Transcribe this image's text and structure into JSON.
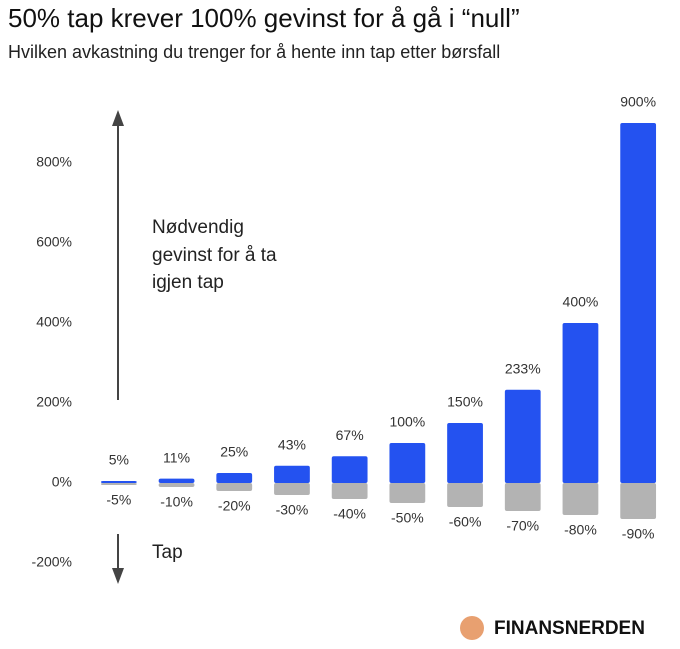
{
  "chart_data": {
    "type": "bar",
    "title": "50% tap krever 100% gevinst for å gå i “null”",
    "subtitle": "Hvilken avkastning du trenger for å hente inn tap etter børsfall",
    "series": [
      {
        "name": "Gevinst",
        "color": "#2452f0",
        "values": [
          5,
          11,
          25,
          43,
          67,
          100,
          150,
          233,
          400,
          900
        ],
        "value_labels": [
          "5%",
          "11%",
          "25%",
          "43%",
          "67%",
          "100%",
          "150%",
          "233%",
          "400%",
          "900%"
        ]
      },
      {
        "name": "Tap",
        "color": "#b3b3b3",
        "values": [
          -5,
          -10,
          -20,
          -30,
          -40,
          -50,
          -60,
          -70,
          -80,
          -90
        ],
        "value_labels": [
          "-5%",
          "-10%",
          "-20%",
          "-30%",
          "-40%",
          "-50%",
          "-60%",
          "-70%",
          "-80%",
          "-90%"
        ]
      }
    ],
    "ylim": [
      -300,
      950
    ],
    "yticks": [
      {
        "value": -200,
        "label": "-200%"
      },
      {
        "value": 0,
        "label": "0%"
      },
      {
        "value": 200,
        "label": "200%"
      },
      {
        "value": 400,
        "label": "400%"
      },
      {
        "value": 600,
        "label": "600%"
      },
      {
        "value": 800,
        "label": "800%"
      }
    ],
    "grid": false,
    "annotations": {
      "gain_note": [
        "Nødvendig",
        "gevinst for å ta",
        "igjen tap"
      ],
      "loss_note": "Tap"
    },
    "brand": "FINANSNERDEN"
  }
}
